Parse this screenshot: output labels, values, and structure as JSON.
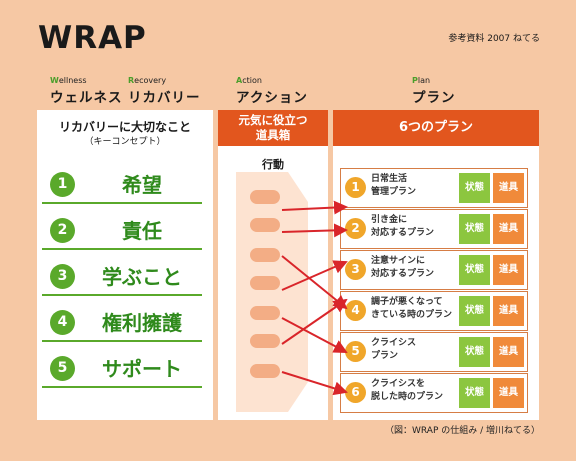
{
  "title": "WRAP",
  "reference": "参考資料 2007 ねてる",
  "header": {
    "wellness": {
      "initial": "W",
      "rest": "ellness",
      "jp": "ウェルネス"
    },
    "recovery": {
      "initial": "R",
      "rest": "ecovery",
      "jp": "リカバリー"
    },
    "action": {
      "initial": "A",
      "rest": "ction",
      "jp": "アクション"
    },
    "plan": {
      "initial": "P",
      "rest": "lan",
      "jp": "プラン"
    }
  },
  "concepts": {
    "title": "リカバリーに大切なこと",
    "subtitle": "（キーコンセプト）",
    "items": [
      {
        "num": "1",
        "label": "希望"
      },
      {
        "num": "2",
        "label": "責任"
      },
      {
        "num": "3",
        "label": "学ぶこと"
      },
      {
        "num": "4",
        "label": "権利擁護"
      },
      {
        "num": "5",
        "label": "サポート"
      }
    ]
  },
  "tools": {
    "header_line1": "元気に役立つ",
    "header_line2": "道具箱",
    "action_label": "行動"
  },
  "plans": {
    "header": "6つのプラン",
    "state_label": "状態",
    "tool_label": "道具",
    "items": [
      {
        "num": "1",
        "line1": "日常生活",
        "line2": "管理プラン"
      },
      {
        "num": "2",
        "line1": "引き金に",
        "line2": "対応するプラン"
      },
      {
        "num": "3",
        "line1": "注意サインに",
        "line2": "対応するプラン"
      },
      {
        "num": "4",
        "line1": "調子が悪くなって",
        "line2": "きている時のプラン"
      },
      {
        "num": "5",
        "line1": "クライシス",
        "line2": "プラン"
      },
      {
        "num": "6",
        "line1": "クライシスを",
        "line2": "脱した時のプラン"
      }
    ]
  },
  "caption": "（図：WRAP の仕組み / 増川ねてる）",
  "colors": {
    "background": "#f6c8a4",
    "accent": "#e2561e",
    "green": "#5aa92b",
    "state": "#8cc63f",
    "tool": "#f08a3a",
    "arrow": "#d9252a"
  }
}
